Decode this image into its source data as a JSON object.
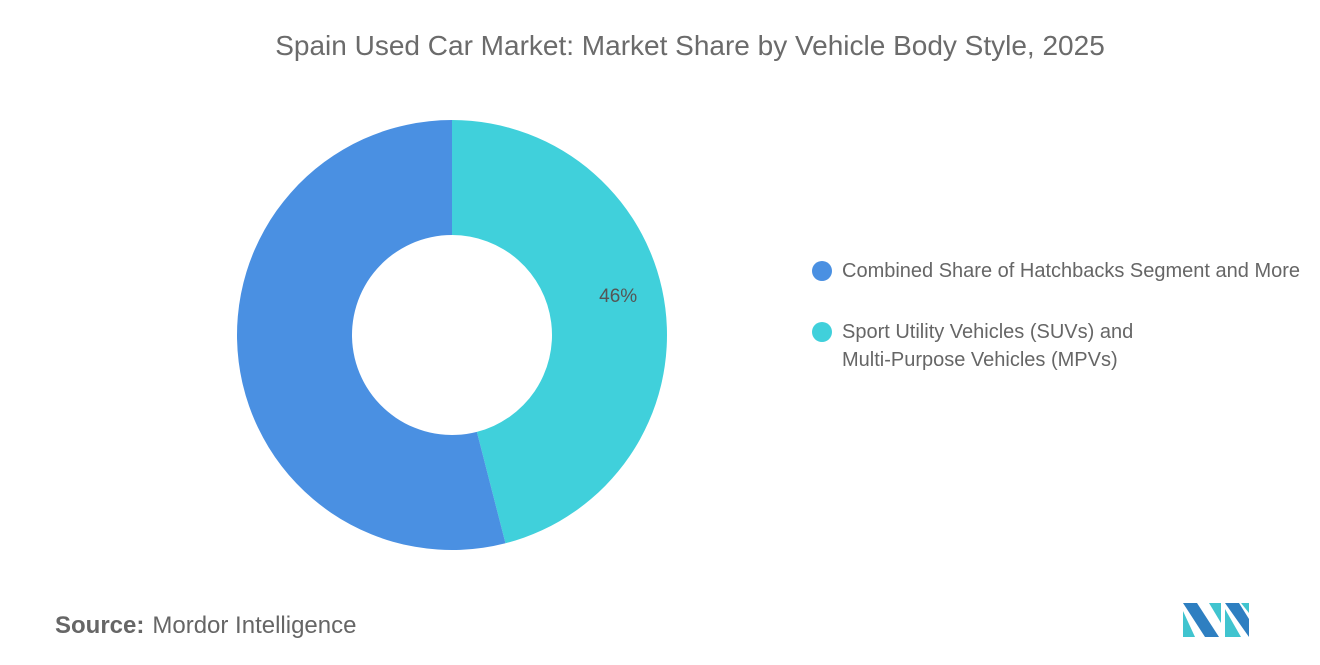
{
  "chart_data": {
    "type": "pie",
    "variant": "donut",
    "title": "Spain Used Car Market: Market Share by Vehicle Body Style, 2025",
    "series": [
      {
        "name": "Combined Share of Hatchbacks Segment and More",
        "value": 54,
        "color": "#4a90e2",
        "label": ""
      },
      {
        "name": "Sport Utility Vehicles (SUVs) and Multi-Purpose Vehicles (MPVs)",
        "value": 46,
        "color": "#40d0db",
        "label": "46%"
      }
    ],
    "legend_position": "right"
  },
  "source": {
    "label": "Source:",
    "value": "Mordor Intelligence"
  },
  "logo": {
    "text": "Mordor Intelligence",
    "colors": [
      "#2e7fc1",
      "#40c4cf"
    ]
  }
}
